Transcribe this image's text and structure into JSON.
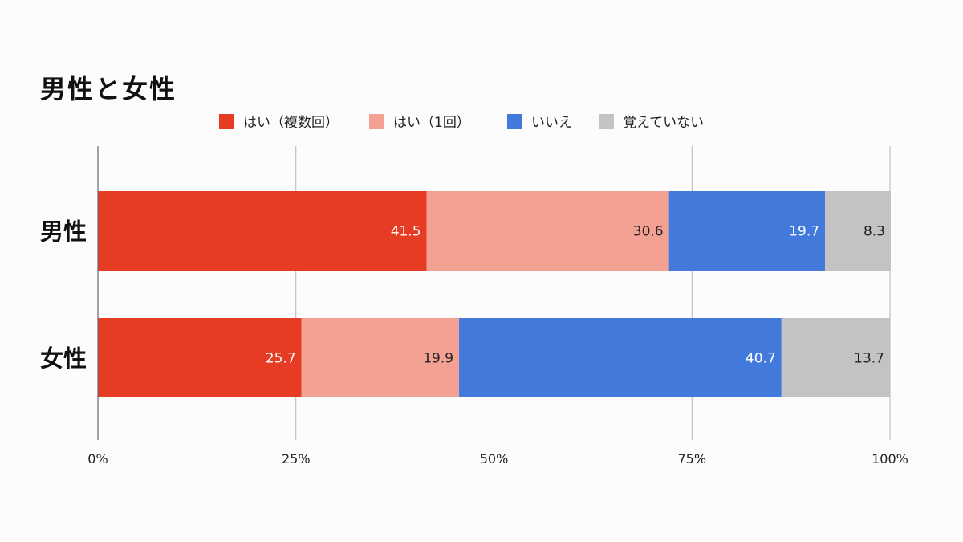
{
  "chart_data": {
    "type": "bar",
    "orientation": "horizontal",
    "stacked": true,
    "title": "男性と女性",
    "categories": [
      "男性",
      "女性"
    ],
    "series": [
      {
        "name": "はい（複数回）",
        "color": "#e63c23",
        "label_color": "#ffffff",
        "values": [
          41.5,
          25.7
        ]
      },
      {
        "name": "はい（1回）",
        "color": "#f2a193",
        "label_color": "#222222",
        "values": [
          30.6,
          19.9
        ]
      },
      {
        "name": "いいえ",
        "color": "#4279db",
        "label_color": "#ffffff",
        "values": [
          19.7,
          40.7
        ]
      },
      {
        "name": "覚えていない",
        "color": "#c3c3c3",
        "label_color": "#222222",
        "values": [
          8.3,
          13.7
        ]
      }
    ],
    "xlim": [
      0,
      100
    ],
    "x_ticks": [
      "0%",
      "25%",
      "50%",
      "75%",
      "100%"
    ],
    "xlabel": "",
    "ylabel": "",
    "grid": true,
    "legend_position": "top"
  }
}
